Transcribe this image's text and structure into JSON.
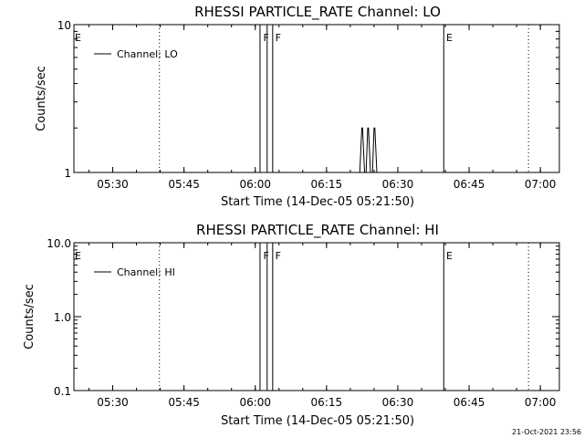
{
  "chart_data": [
    {
      "type": "line",
      "title": "RHESSI PARTICLE_RATE Channel: LO",
      "xlabel": "Start Time (14-Dec-05 05:21:50)",
      "ylabel": "Counts/sec",
      "yscale": "log",
      "ylim": [
        1,
        10
      ],
      "yticks": [
        "1",
        "10"
      ],
      "xlim": [
        "05:21:50",
        "07:04:00"
      ],
      "xticks": [
        "05:30",
        "05:45",
        "06:00",
        "06:15",
        "06:30",
        "06:45",
        "07:00"
      ],
      "grid": false,
      "legend": {
        "position": "top-left",
        "label": "Channel: LO"
      },
      "series": [
        {
          "name": "Channel: LO",
          "x": [
            "06:22:00",
            "06:22:25",
            "06:22:35",
            "06:23:00",
            "06:23:20",
            "06:23:40",
            "06:23:50",
            "06:24:15",
            "06:24:40",
            "06:25:00",
            "06:25:10",
            "06:25:35"
          ],
          "y": [
            1,
            2,
            2,
            1,
            1,
            2,
            2,
            1,
            1,
            2,
            2,
            1
          ]
        }
      ],
      "flags": [
        {
          "label": "E",
          "time": "05:21:50"
        },
        {
          "label": "F",
          "time": "06:01:30"
        },
        {
          "label": "F",
          "time": "06:04:00"
        },
        {
          "label": "E",
          "time": "06:40:00"
        }
      ],
      "solid_lines": [
        "06:01:00",
        "06:02:30",
        "06:03:40",
        "06:39:40"
      ],
      "dotted_lines": [
        "05:39:50",
        "06:57:30"
      ]
    },
    {
      "type": "line",
      "title": "RHESSI PARTICLE_RATE Channel: HI",
      "xlabel": "Start Time (14-Dec-05 05:21:50)",
      "ylabel": "Counts/sec",
      "yscale": "log",
      "ylim": [
        0.1,
        10
      ],
      "yticks": [
        "0.1",
        "1.0",
        "10.0"
      ],
      "xlim": [
        "05:21:50",
        "07:04:00"
      ],
      "xticks": [
        "05:30",
        "05:45",
        "06:00",
        "06:15",
        "06:30",
        "06:45",
        "07:00"
      ],
      "grid": false,
      "legend": {
        "position": "top-left",
        "label": "Channel: HI"
      },
      "series": [
        {
          "name": "Channel: HI",
          "x": [],
          "y": []
        }
      ],
      "flags": [
        {
          "label": "E",
          "time": "05:21:50"
        },
        {
          "label": "F",
          "time": "06:01:30"
        },
        {
          "label": "F",
          "time": "06:04:00"
        },
        {
          "label": "E",
          "time": "06:40:00"
        }
      ],
      "solid_lines": [
        "06:01:00",
        "06:02:30",
        "06:03:40",
        "06:39:40"
      ],
      "dotted_lines": [
        "05:39:50",
        "06:57:30"
      ]
    }
  ],
  "footer": {
    "timestamp": "21-Oct-2021 23:56"
  }
}
